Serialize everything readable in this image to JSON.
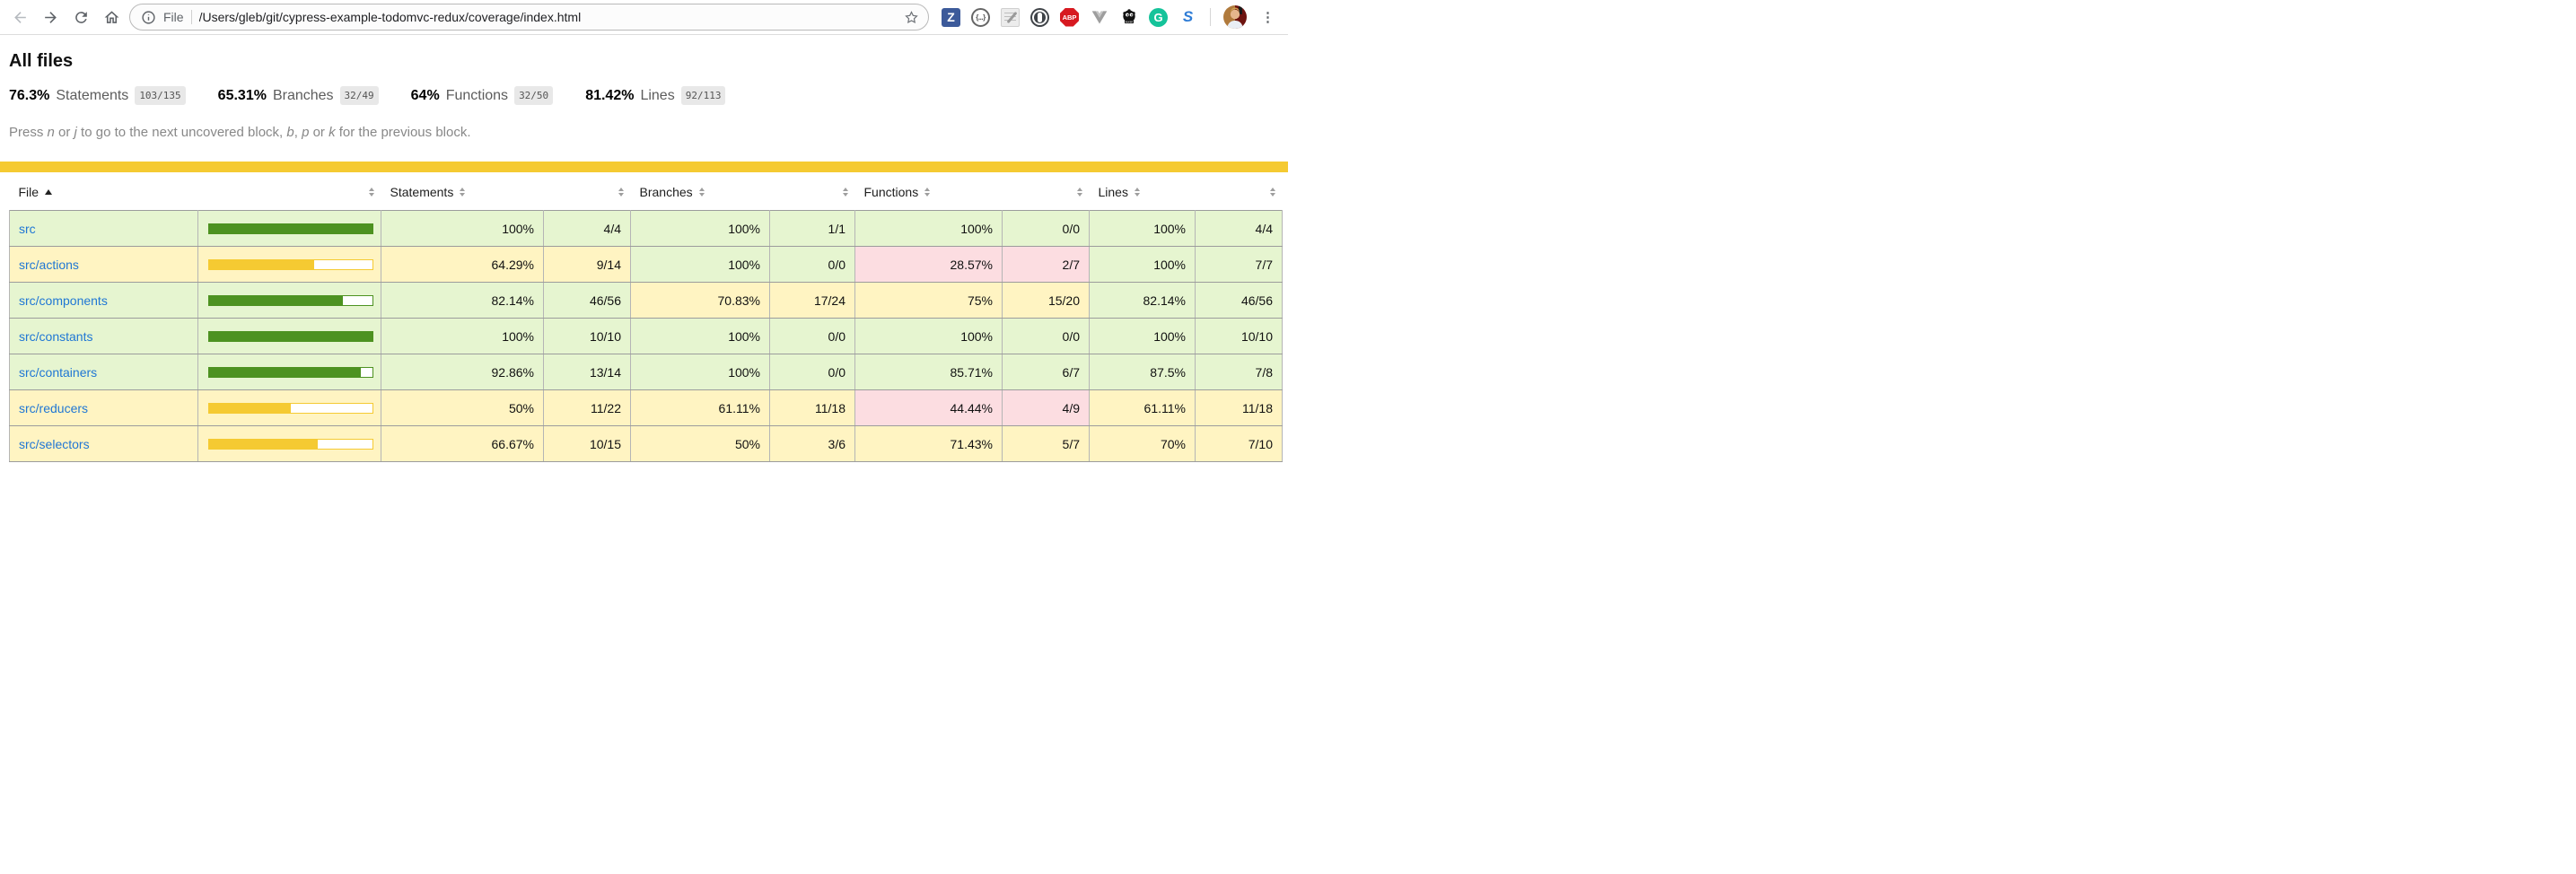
{
  "browser": {
    "omnibox": {
      "scheme_label": "File",
      "url": "/Users/gleb/git/cypress-example-todomvc-redux/coverage/index.html"
    },
    "extensions": {
      "z_letter": "Z",
      "braces_label": "{...}",
      "abp_label": "ABP",
      "grammarly_letter": "G",
      "swirl_letter": "S",
      "menu_glyph": "⋮"
    }
  },
  "page": {
    "title": "All files",
    "summary": [
      {
        "pct": "76.3%",
        "label": "Statements",
        "fraction": "103/135"
      },
      {
        "pct": "65.31%",
        "label": "Branches",
        "fraction": "32/49"
      },
      {
        "pct": "64%",
        "label": "Functions",
        "fraction": "32/50"
      },
      {
        "pct": "81.42%",
        "label": "Lines",
        "fraction": "92/113"
      }
    ],
    "hint_parts": [
      {
        "t": "Press "
      },
      {
        "t": "n",
        "i": true
      },
      {
        "t": " or "
      },
      {
        "t": "j",
        "i": true
      },
      {
        "t": " to go to the next uncovered block, "
      },
      {
        "t": "b",
        "i": true
      },
      {
        "t": ", "
      },
      {
        "t": "p",
        "i": true
      },
      {
        "t": " or "
      },
      {
        "t": "k",
        "i": true
      },
      {
        "t": " for the previous block."
      }
    ],
    "colors": {
      "high_bg": "#e6f5d0",
      "medium_bg": "#fff4c2",
      "low_bg": "#fcdde1",
      "green_fill": "#4d9221",
      "gold_fill": "#f5ca32",
      "status_line": "#f5ca32",
      "link": "#2077d4"
    }
  },
  "table": {
    "header": {
      "file": "File",
      "statements": "Statements",
      "branches": "Branches",
      "functions": "Functions",
      "lines": "Lines",
      "file_sort": "asc"
    },
    "rows": [
      {
        "file": "src",
        "row_class": "high",
        "bar": {
          "pct": 100,
          "color": "green"
        },
        "statements": {
          "v": "100%",
          "f": "4/4",
          "cls": "high"
        },
        "branches": {
          "v": "100%",
          "f": "1/1",
          "cls": "high"
        },
        "functions": {
          "v": "100%",
          "f": "0/0",
          "cls": "high"
        },
        "lines": {
          "v": "100%",
          "f": "4/4",
          "cls": "high"
        }
      },
      {
        "file": "src/actions",
        "row_class": "medium",
        "bar": {
          "pct": 64.29,
          "color": "gold"
        },
        "statements": {
          "v": "64.29%",
          "f": "9/14",
          "cls": "medium"
        },
        "branches": {
          "v": "100%",
          "f": "0/0",
          "cls": "high"
        },
        "functions": {
          "v": "28.57%",
          "f": "2/7",
          "cls": "low"
        },
        "lines": {
          "v": "100%",
          "f": "7/7",
          "cls": "high"
        }
      },
      {
        "file": "src/components",
        "row_class": "high",
        "bar": {
          "pct": 82.14,
          "color": "green"
        },
        "statements": {
          "v": "82.14%",
          "f": "46/56",
          "cls": "high"
        },
        "branches": {
          "v": "70.83%",
          "f": "17/24",
          "cls": "medium"
        },
        "functions": {
          "v": "75%",
          "f": "15/20",
          "cls": "medium"
        },
        "lines": {
          "v": "82.14%",
          "f": "46/56",
          "cls": "high"
        }
      },
      {
        "file": "src/constants",
        "row_class": "high",
        "bar": {
          "pct": 100,
          "color": "green"
        },
        "statements": {
          "v": "100%",
          "f": "10/10",
          "cls": "high"
        },
        "branches": {
          "v": "100%",
          "f": "0/0",
          "cls": "high"
        },
        "functions": {
          "v": "100%",
          "f": "0/0",
          "cls": "high"
        },
        "lines": {
          "v": "100%",
          "f": "10/10",
          "cls": "high"
        }
      },
      {
        "file": "src/containers",
        "row_class": "high",
        "bar": {
          "pct": 92.86,
          "color": "green"
        },
        "statements": {
          "v": "92.86%",
          "f": "13/14",
          "cls": "high"
        },
        "branches": {
          "v": "100%",
          "f": "0/0",
          "cls": "high"
        },
        "functions": {
          "v": "85.71%",
          "f": "6/7",
          "cls": "high"
        },
        "lines": {
          "v": "87.5%",
          "f": "7/8",
          "cls": "high"
        }
      },
      {
        "file": "src/reducers",
        "row_class": "medium",
        "bar": {
          "pct": 50,
          "color": "gold"
        },
        "statements": {
          "v": "50%",
          "f": "11/22",
          "cls": "medium"
        },
        "branches": {
          "v": "61.11%",
          "f": "11/18",
          "cls": "medium"
        },
        "functions": {
          "v": "44.44%",
          "f": "4/9",
          "cls": "low"
        },
        "lines": {
          "v": "61.11%",
          "f": "11/18",
          "cls": "medium"
        }
      },
      {
        "file": "src/selectors",
        "row_class": "medium",
        "bar": {
          "pct": 66.67,
          "color": "gold"
        },
        "statements": {
          "v": "66.67%",
          "f": "10/15",
          "cls": "medium"
        },
        "branches": {
          "v": "50%",
          "f": "3/6",
          "cls": "medium"
        },
        "functions": {
          "v": "71.43%",
          "f": "5/7",
          "cls": "medium"
        },
        "lines": {
          "v": "70%",
          "f": "7/10",
          "cls": "medium"
        }
      }
    ]
  }
}
